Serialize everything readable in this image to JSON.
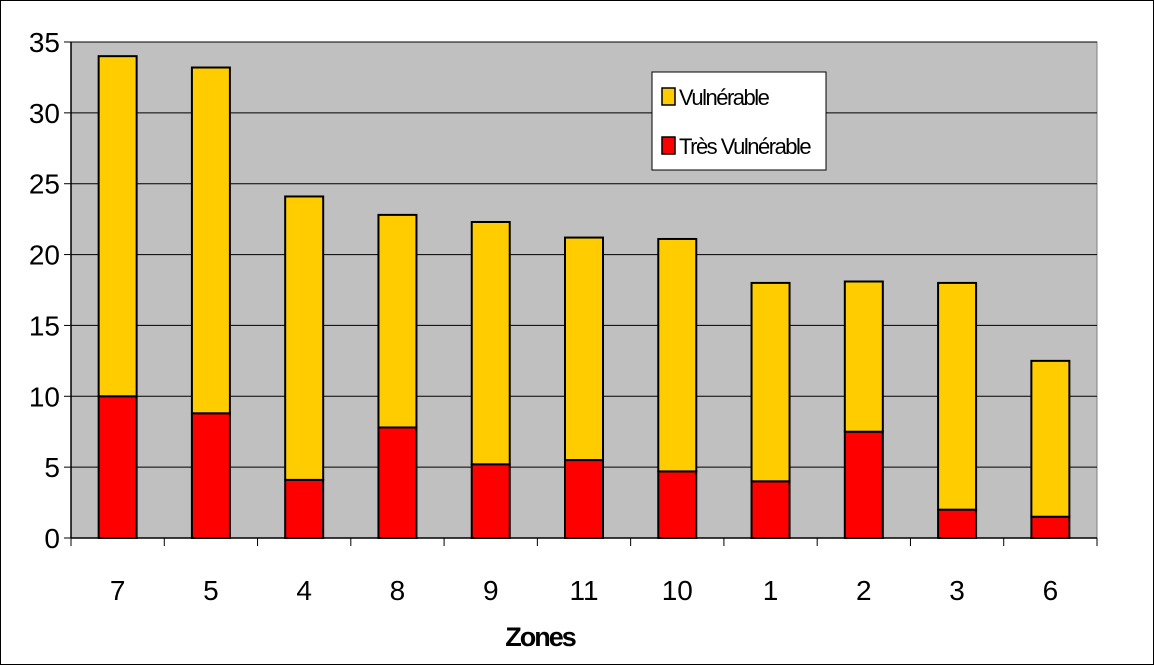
{
  "chart_data": {
    "type": "bar",
    "stacked": true,
    "categories": [
      "7",
      "5",
      "4",
      "8",
      "9",
      "11",
      "10",
      "1",
      "2",
      "3",
      "6"
    ],
    "series": [
      {
        "name": "Très Vulnérable",
        "color": "#ff0000",
        "values": [
          10,
          8.8,
          4.1,
          7.8,
          5.2,
          5.5,
          4.7,
          4.0,
          7.5,
          2.0,
          1.5
        ]
      },
      {
        "name": "Vulnérable",
        "color": "#ffcc00",
        "values": [
          24,
          24.4,
          20.0,
          15.0,
          17.1,
          15.7,
          16.4,
          14.0,
          10.6,
          16.0,
          11.0
        ]
      }
    ],
    "xlabel": "Zones",
    "ylabel": "",
    "ylim": [
      0,
      35
    ],
    "yticks": [
      "0",
      "5",
      "10",
      "15",
      "20",
      "25",
      "30",
      "35"
    ],
    "grid": true,
    "plot_background": "#c0c0c0",
    "legend": {
      "placement": "top-right",
      "entries": [
        "Vulnérable",
        "Très Vulnérable"
      ]
    }
  }
}
